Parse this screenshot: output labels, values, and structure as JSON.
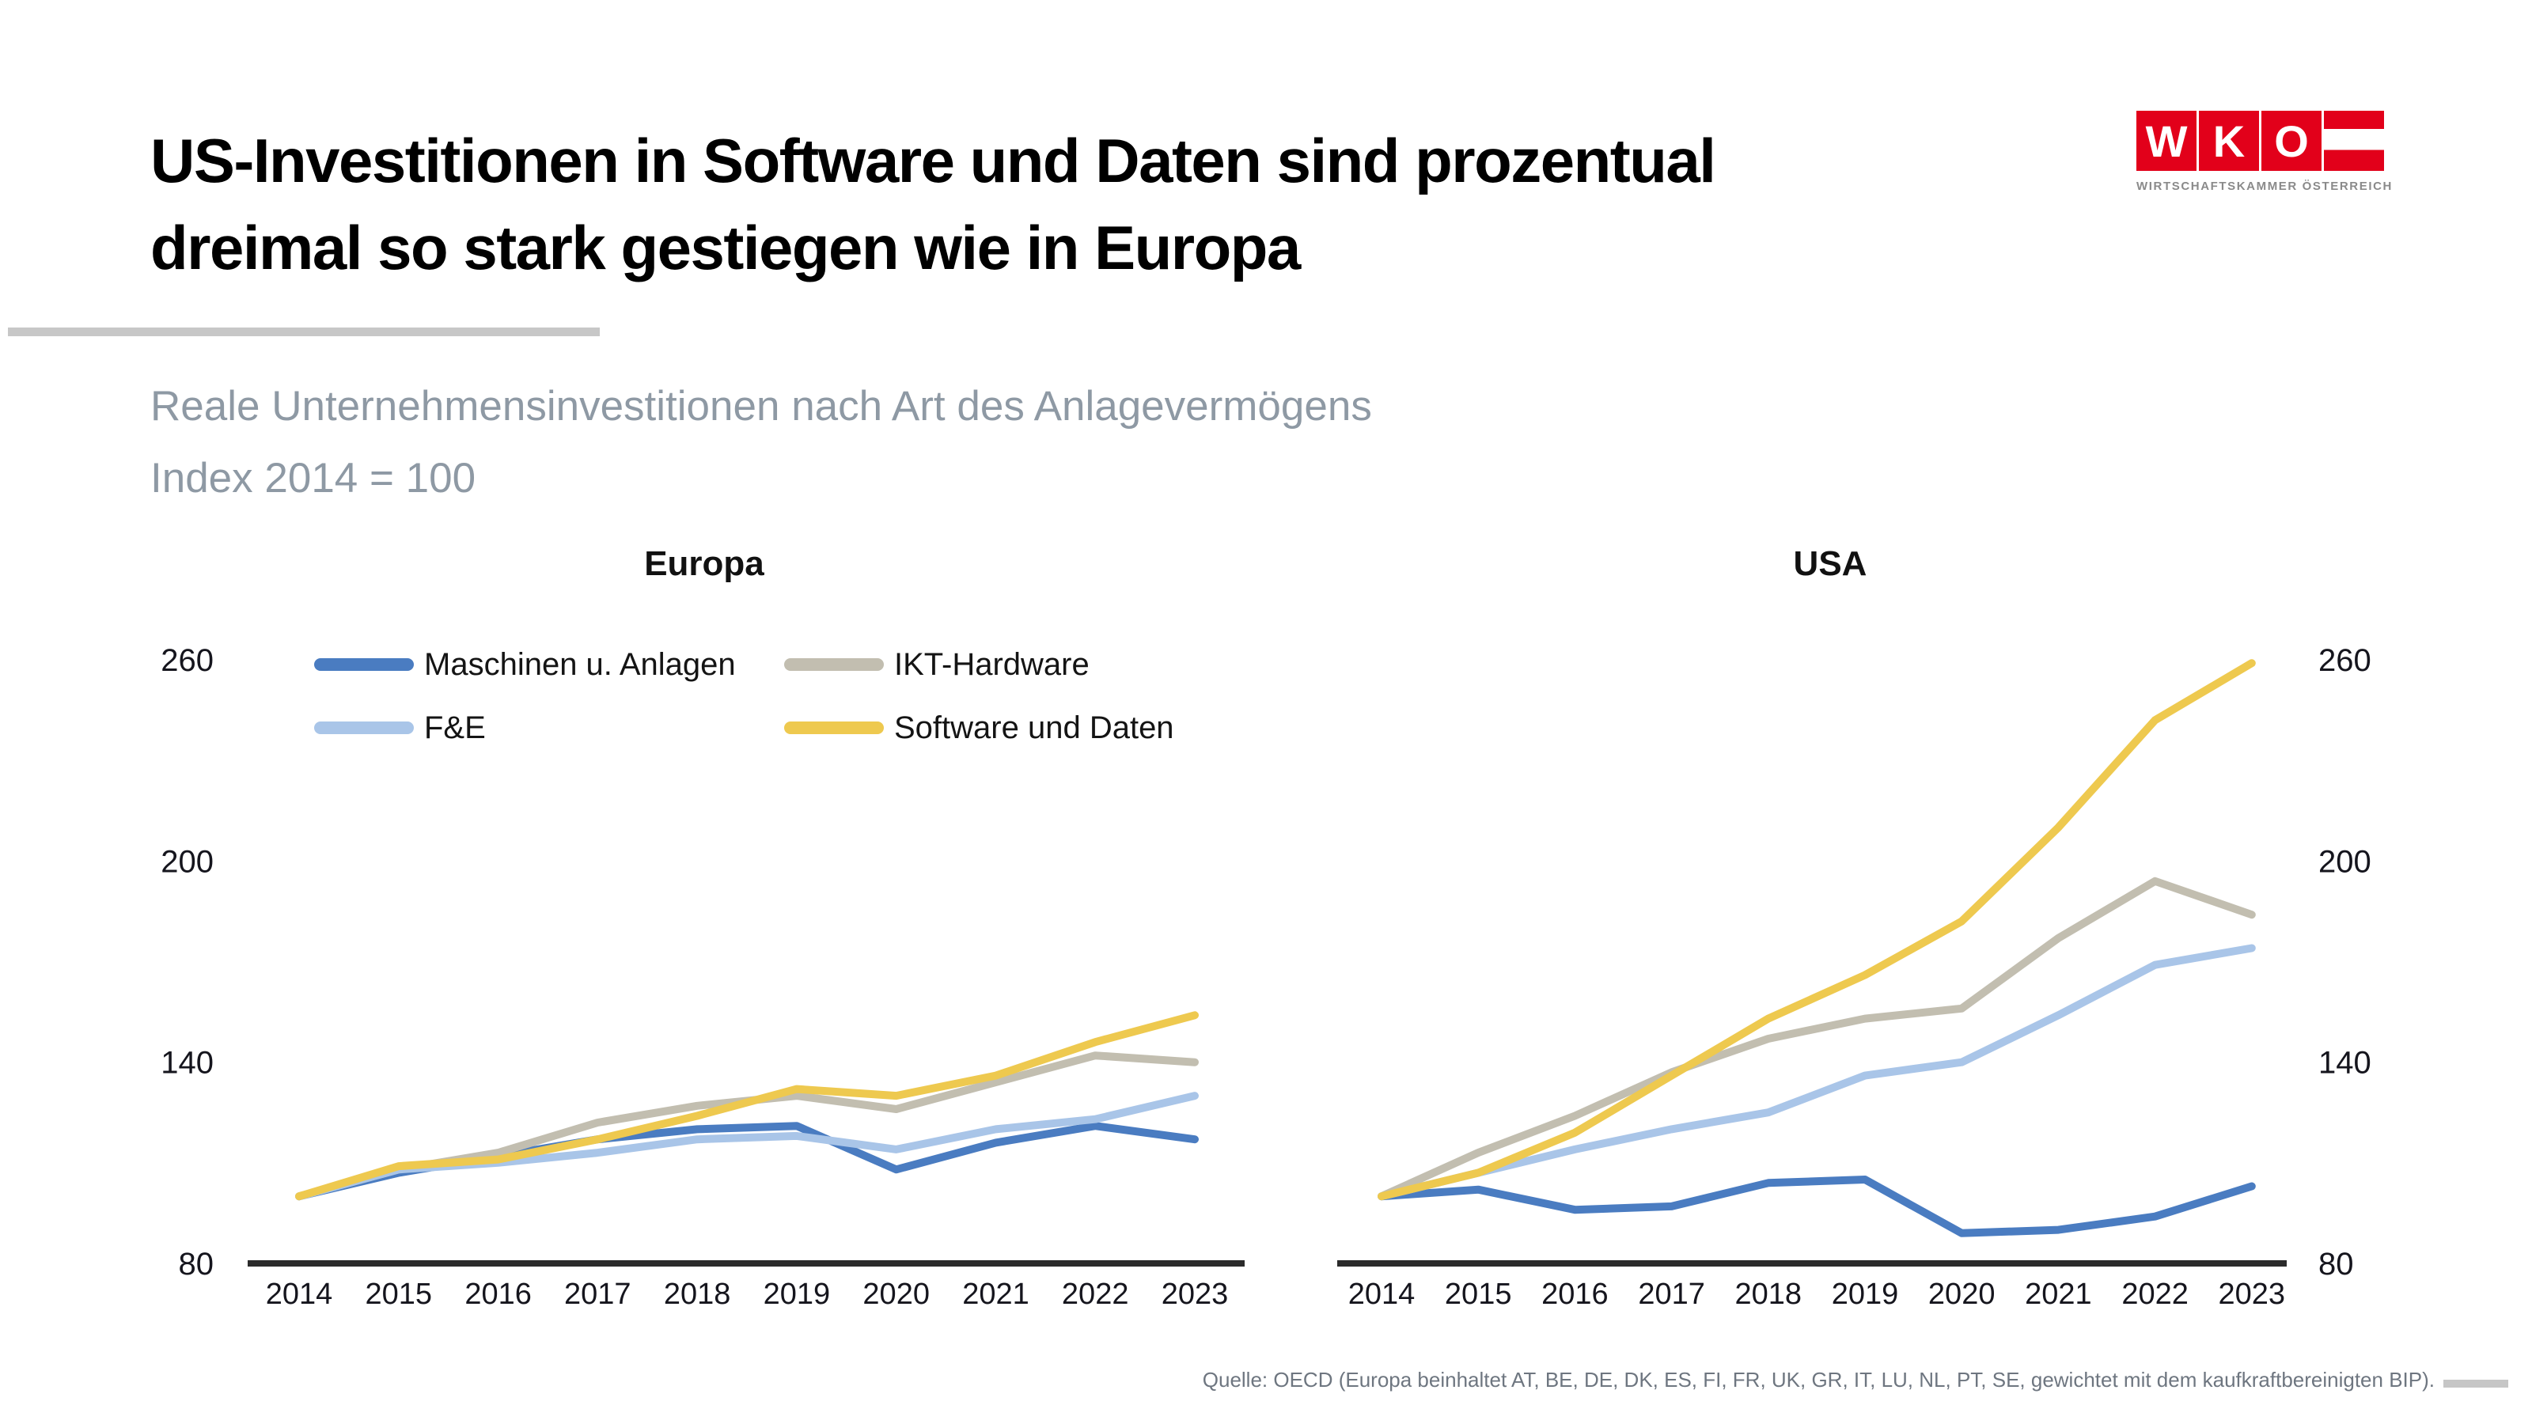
{
  "header": {
    "title_line1": "US-Investitionen in Software und Daten sind prozentual",
    "title_line2": "dreimal so stark gestiegen wie in Europa",
    "subtitle_line1": "Reale Unternehmensinvestitionen nach Art des Anlagevermögens",
    "subtitle_line2": "Index 2014 = 100"
  },
  "logo": {
    "letters": [
      "W",
      "K",
      "O"
    ],
    "caption": "WIRTSCHAFTSKAMMER ÖSTERREICH",
    "brand_red": "#e2001a"
  },
  "legend": {
    "items": [
      {
        "label": "Maschinen u. Anlagen",
        "color": "#4a7cc1"
      },
      {
        "label": "IKT-Hardware",
        "color": "#c2beb0"
      },
      {
        "label": "F&E",
        "color": "#a9c5e8"
      },
      {
        "label": "Software und Daten",
        "color": "#eec94f"
      }
    ]
  },
  "chart_data": [
    {
      "type": "line",
      "title": "Europa",
      "x": [
        2014,
        2015,
        2016,
        2017,
        2018,
        2019,
        2020,
        2021,
        2022,
        2023
      ],
      "ylim": [
        80,
        270
      ],
      "yticks": [
        80,
        140,
        200,
        260
      ],
      "ytick_side": "left",
      "grid": false,
      "series": [
        {
          "name": "Maschinen u. Anlagen",
          "color": "#4a7cc1",
          "values": [
            100,
            107,
            112,
            117,
            120,
            121,
            108,
            116,
            121,
            117
          ]
        },
        {
          "name": "IKT-Hardware",
          "color": "#c2beb0",
          "values": [
            100,
            108,
            113,
            122,
            127,
            130,
            126,
            134,
            142,
            140
          ]
        },
        {
          "name": "F&E",
          "color": "#a9c5e8",
          "values": [
            100,
            108,
            110,
            113,
            117,
            118,
            114,
            120,
            123,
            130
          ]
        },
        {
          "name": "Software und Daten",
          "color": "#eec94f",
          "values": [
            100,
            109,
            111,
            117,
            124,
            132,
            130,
            136,
            146,
            154
          ]
        }
      ]
    },
    {
      "type": "line",
      "title": "USA",
      "x": [
        2014,
        2015,
        2016,
        2017,
        2018,
        2019,
        2020,
        2021,
        2022,
        2023
      ],
      "ylim": [
        80,
        270
      ],
      "yticks": [
        80,
        140,
        200,
        260
      ],
      "ytick_side": "right",
      "grid": false,
      "series": [
        {
          "name": "Maschinen u. Anlagen",
          "color": "#4a7cc1",
          "values": [
            100,
            102,
            96,
            97,
            104,
            105,
            89,
            90,
            94,
            103
          ]
        },
        {
          "name": "IKT-Hardware",
          "color": "#c2beb0",
          "values": [
            100,
            113,
            124,
            137,
            147,
            153,
            156,
            177,
            194,
            184
          ]
        },
        {
          "name": "F&E",
          "color": "#a9c5e8",
          "values": [
            100,
            107,
            114,
            120,
            125,
            136,
            140,
            154,
            169,
            174
          ]
        },
        {
          "name": "Software und Daten",
          "color": "#eec94f",
          "values": [
            100,
            107,
            119,
            136,
            153,
            166,
            182,
            210,
            242,
            259
          ]
        }
      ]
    }
  ],
  "footer": {
    "source": "Quelle: OECD (Europa beinhaltet AT, BE, DE, DK, ES, FI, FR, UK, GR, IT, LU, NL, PT, SE, gewichtet mit dem kaufkraftbereinigten BIP)."
  }
}
